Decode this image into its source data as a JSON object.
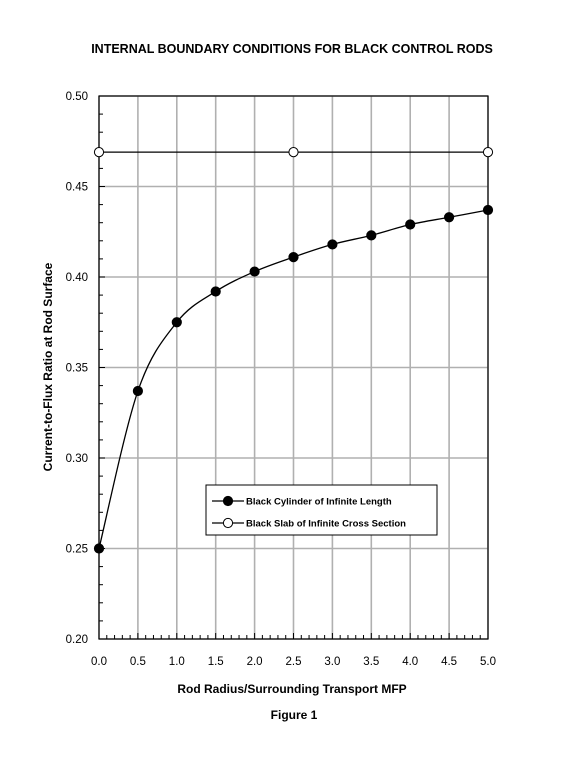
{
  "chart_data": {
    "type": "line",
    "title": "INTERNAL BOUNDARY CONDITIONS FOR BLACK CONTROL RODS",
    "xlabel": "Rod Radius/Surrounding Transport MFP",
    "ylabel": "Current-to-Flux Ratio at Rod Surface",
    "caption": "Figure 1",
    "xlim": [
      0.0,
      5.0
    ],
    "ylim": [
      0.2,
      0.5
    ],
    "x_ticks": [
      "0.0",
      "0.5",
      "1.0",
      "1.5",
      "2.0",
      "2.5",
      "3.0",
      "3.5",
      "4.0",
      "4.5",
      "5.0"
    ],
    "y_ticks": [
      "0.20",
      "0.25",
      "0.30",
      "0.35",
      "0.40",
      "0.45",
      "0.50"
    ],
    "grid": true,
    "legend_position": "center",
    "series": [
      {
        "name": "Black Cylinder of Infinite Length",
        "marker": "filled-circle",
        "color": "#000000",
        "x": [
          0.0,
          0.5,
          1.0,
          1.5,
          2.0,
          2.5,
          3.0,
          3.5,
          4.0,
          4.5,
          5.0
        ],
        "y": [
          0.25,
          0.337,
          0.375,
          0.392,
          0.403,
          0.411,
          0.418,
          0.423,
          0.429,
          0.433,
          0.437
        ]
      },
      {
        "name": "Black Slab of Infinite Cross Section",
        "marker": "open-circle",
        "color": "#000000",
        "x": [
          0.0,
          2.5,
          5.0
        ],
        "y": [
          0.469,
          0.469,
          0.469
        ]
      }
    ]
  }
}
